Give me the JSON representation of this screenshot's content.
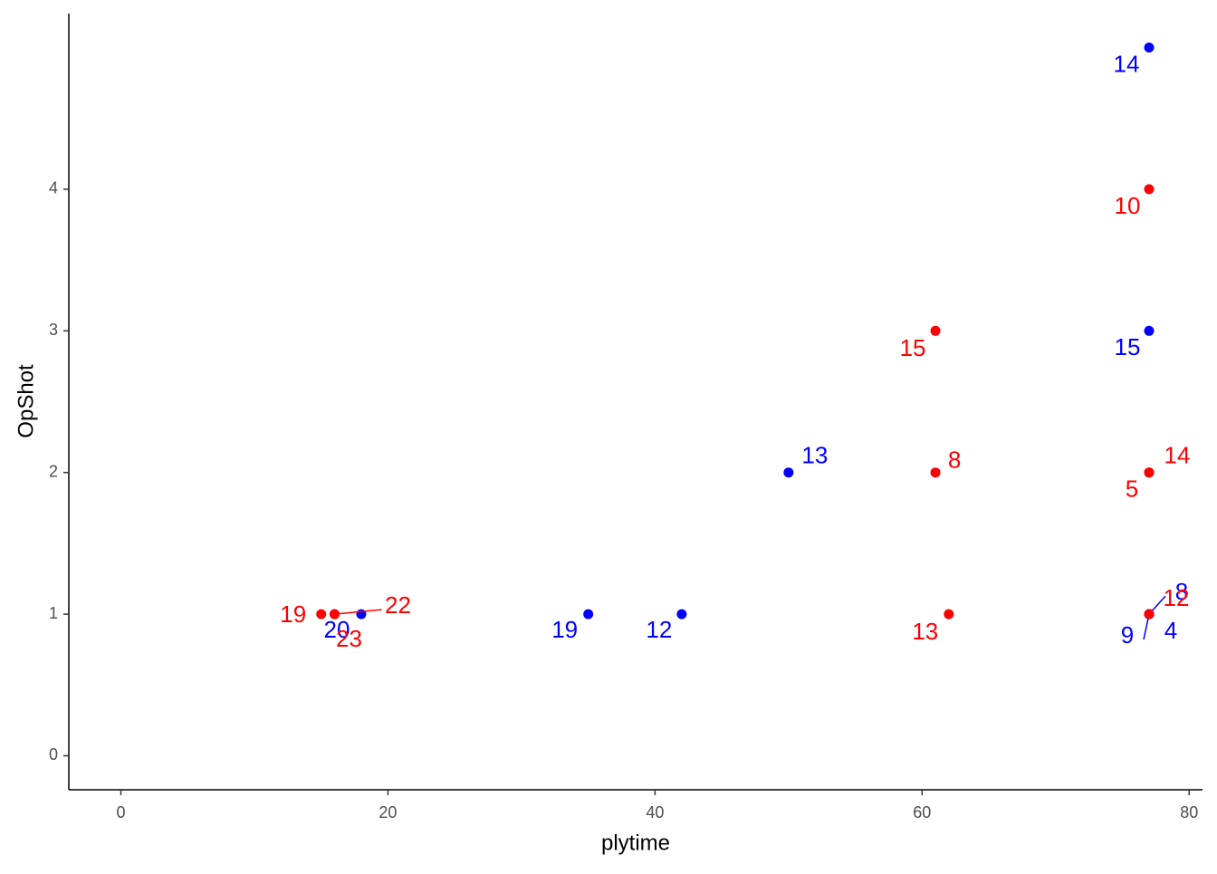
{
  "chart_data": {
    "type": "scatter",
    "x_label": "plytime",
    "y_label": "OpShot",
    "xlim": [
      -3.9,
      81.0
    ],
    "ylim": [
      -0.24,
      5.24
    ],
    "xticks": [
      0,
      20,
      40,
      60,
      80
    ],
    "yticks": [
      0,
      1,
      2,
      3,
      4
    ],
    "series": [
      {
        "color": "#0000ff",
        "x": [
          18,
          35,
          42,
          50,
          77,
          77,
          77,
          77,
          77
        ],
        "values": [
          1,
          1,
          1,
          2,
          5,
          3,
          1,
          1,
          1
        ],
        "point_labels": [
          "20",
          "19",
          "12",
          "13",
          "14",
          "15",
          "9",
          "8",
          "4"
        ]
      },
      {
        "color": "#ff0000",
        "x": [
          15,
          16,
          16,
          61,
          61,
          62,
          77,
          77,
          77,
          77
        ],
        "values": [
          1,
          1,
          1,
          3,
          2,
          1,
          4,
          2,
          2,
          1
        ],
        "point_labels": [
          "19",
          "23",
          "22",
          "15",
          "8",
          "13",
          "10",
          "5",
          "14",
          "12"
        ]
      }
    ]
  }
}
